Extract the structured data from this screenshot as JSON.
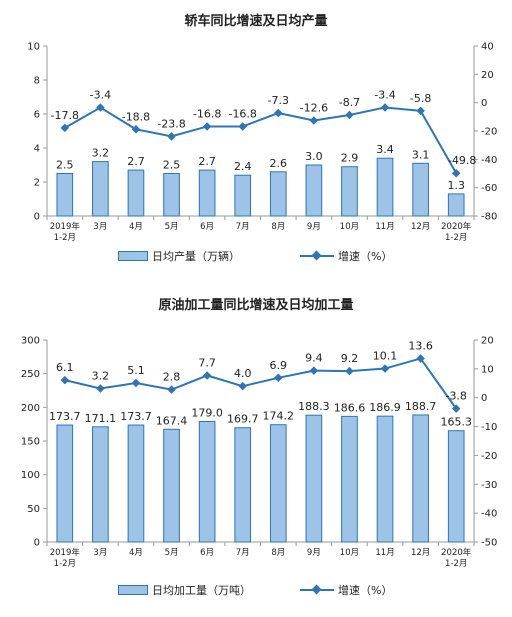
{
  "colors": {
    "bar_fill": "#9dc3e6",
    "bar_stroke": "#2e75b6",
    "line": "#2e75b6",
    "axis": "#9a9a9a",
    "text": "#222222"
  },
  "chart_data": [
    {
      "type": "bar",
      "title": "轿车同比增速及日均产量",
      "categories": [
        "2019年\n1-2月",
        "3月",
        "4月",
        "5月",
        "6月",
        "7月",
        "8月",
        "9月",
        "10月",
        "11月",
        "12月",
        "2020年\n1-2月"
      ],
      "series": [
        {
          "name": "日均产量（万辆）",
          "type": "bar",
          "axis": "left",
          "values": [
            2.5,
            3.2,
            2.7,
            2.5,
            2.7,
            2.4,
            2.6,
            3.0,
            2.9,
            3.4,
            3.1,
            1.3
          ],
          "labels": [
            "2.5",
            "3.2",
            "2.7",
            "2.5",
            "2.7",
            "2.4",
            "2.6",
            "3.0",
            "2.9",
            "3.4",
            "3.1",
            "1.3"
          ]
        },
        {
          "name": "增速（%）",
          "type": "line",
          "axis": "right",
          "values": [
            -17.8,
            -3.4,
            -18.8,
            -23.8,
            -16.8,
            -16.8,
            -7.3,
            -12.6,
            -8.7,
            -3.4,
            -5.8,
            -49.8
          ],
          "labels": [
            "-17.8",
            "-3.4",
            "-18.8",
            "-23.8",
            "-16.8",
            "-16.8",
            "-7.3",
            "-12.6",
            "-8.7",
            "-3.4",
            "-5.8",
            "-49.8"
          ]
        }
      ],
      "y_left": {
        "min": 0,
        "max": 10,
        "ticks": [
          "0",
          "2",
          "4",
          "6",
          "8",
          "10"
        ]
      },
      "y_right": {
        "min": -80,
        "max": 40,
        "ticks": [
          "-80",
          "-60",
          "-40",
          "-20",
          "0",
          "20",
          "40"
        ]
      },
      "legend": {
        "bar": "日均产量（万辆）",
        "line": "增速（%）",
        "position": "bottom"
      }
    },
    {
      "type": "bar",
      "title": "原油加工量同比增速及日均加工量",
      "categories": [
        "2019年\n1-2月",
        "3月",
        "4月",
        "5月",
        "6月",
        "7月",
        "8月",
        "9月",
        "10月",
        "11月",
        "12月",
        "2020年\n1-2月"
      ],
      "series": [
        {
          "name": "日均加工量（万吨）",
          "type": "bar",
          "axis": "left",
          "values": [
            173.7,
            171.1,
            173.7,
            167.4,
            179.0,
            169.7,
            174.2,
            188.3,
            186.6,
            186.9,
            188.7,
            165.3
          ],
          "labels": [
            "173.7",
            "171.1",
            "173.7",
            "167.4",
            "179.0",
            "169.7",
            "174.2",
            "188.3",
            "186.6",
            "186.9",
            "188.7",
            "165.3"
          ]
        },
        {
          "name": "增速（%）",
          "type": "line",
          "axis": "right",
          "values": [
            6.1,
            3.2,
            5.1,
            2.8,
            7.7,
            4.0,
            6.9,
            9.4,
            9.2,
            10.1,
            13.6,
            -3.8
          ],
          "labels": [
            "6.1",
            "3.2",
            "5.1",
            "2.8",
            "7.7",
            "4.0",
            "6.9",
            "9.4",
            "9.2",
            "10.1",
            "13.6",
            "-3.8"
          ]
        }
      ],
      "y_left": {
        "min": 0,
        "max": 300,
        "ticks": [
          "0",
          "50",
          "100",
          "150",
          "200",
          "250",
          "300"
        ]
      },
      "y_right": {
        "min": -50,
        "max": 20,
        "ticks": [
          "-50",
          "-40",
          "-30",
          "-20",
          "-10",
          "0",
          "10",
          "20"
        ]
      },
      "legend": {
        "bar": "日均加工量（万吨）",
        "line": "增速（%）",
        "position": "bottom"
      }
    }
  ]
}
